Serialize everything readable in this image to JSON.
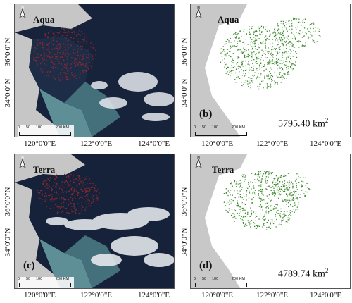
{
  "colors": {
    "land_gray": "#c8c8c8",
    "sea_dark": "#15223a",
    "sea_coastal": "#5f8f96",
    "algae_red": "#8a2830",
    "algae_green": "#3e8a2e"
  },
  "axis": {
    "lat_36": "36°0'0\"N",
    "lat_34": "34°0'0\"N",
    "lon_120": "120°0'0\"E",
    "lon_122": "122°0'0\"E",
    "lon_124": "124°0'0\"E"
  },
  "scale": {
    "labels": [
      "0",
      "50",
      "100",
      "200 KM"
    ]
  },
  "north_symbol": "N",
  "panels": {
    "a": {
      "satellite": "Aqua",
      "letter": "",
      "area": ""
    },
    "b": {
      "satellite": "Aqua",
      "letter": "(b)",
      "area": "5795.40 km",
      "area_unit_sup": "2"
    },
    "c": {
      "satellite": "Terra",
      "letter": "(c)",
      "area": ""
    },
    "d": {
      "satellite": "Terra",
      "letter": "(d)",
      "area": "4789.74 km",
      "area_unit_sup": "2"
    }
  }
}
